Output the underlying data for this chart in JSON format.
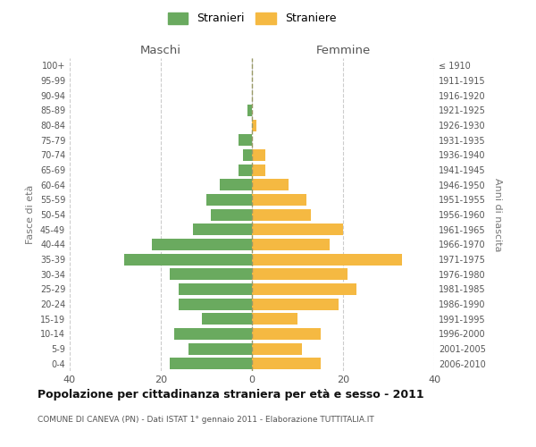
{
  "age_groups": [
    "0-4",
    "5-9",
    "10-14",
    "15-19",
    "20-24",
    "25-29",
    "30-34",
    "35-39",
    "40-44",
    "45-49",
    "50-54",
    "55-59",
    "60-64",
    "65-69",
    "70-74",
    "75-79",
    "80-84",
    "85-89",
    "90-94",
    "95-99",
    "100+"
  ],
  "birth_years": [
    "2006-2010",
    "2001-2005",
    "1996-2000",
    "1991-1995",
    "1986-1990",
    "1981-1985",
    "1976-1980",
    "1971-1975",
    "1966-1970",
    "1961-1965",
    "1956-1960",
    "1951-1955",
    "1946-1950",
    "1941-1945",
    "1936-1940",
    "1931-1935",
    "1926-1930",
    "1921-1925",
    "1916-1920",
    "1911-1915",
    "≤ 1910"
  ],
  "males": [
    18,
    14,
    17,
    11,
    16,
    16,
    18,
    28,
    22,
    13,
    9,
    10,
    7,
    3,
    2,
    3,
    0,
    1,
    0,
    0,
    0
  ],
  "females": [
    15,
    11,
    15,
    10,
    19,
    23,
    21,
    33,
    17,
    20,
    13,
    12,
    8,
    3,
    3,
    0,
    1,
    0,
    0,
    0,
    0
  ],
  "male_color": "#6aaa5f",
  "female_color": "#f5b942",
  "background_color": "#ffffff",
  "grid_color": "#cccccc",
  "title": "Popolazione per cittadinanza straniera per età e sesso - 2011",
  "subtitle": "COMUNE DI CANEVA (PN) - Dati ISTAT 1° gennaio 2011 - Elaborazione TUTTITALIA.IT",
  "xlabel_left": "Maschi",
  "xlabel_right": "Femmine",
  "ylabel_left": "Fasce di età",
  "ylabel_right": "Anni di nascita",
  "xlim": 40,
  "legend_stranieri": "Stranieri",
  "legend_straniere": "Straniere"
}
